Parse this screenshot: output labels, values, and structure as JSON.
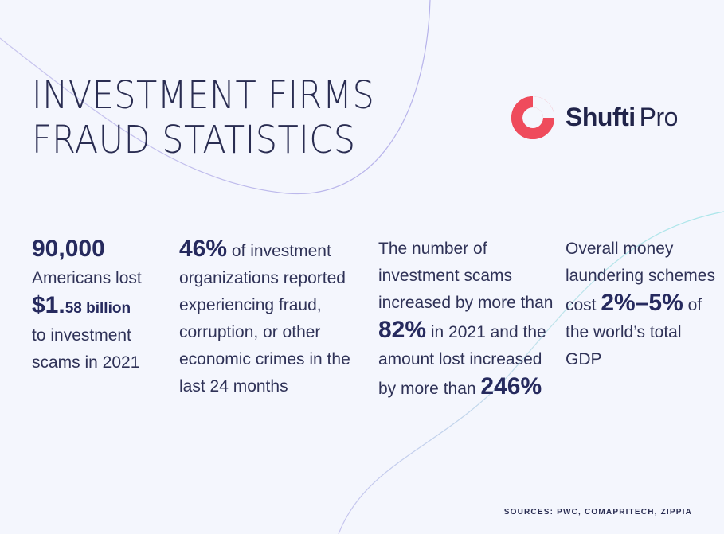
{
  "title": {
    "line1": "INVESTMENT FIRMS",
    "line2": "FRAUD STATISTICS"
  },
  "logo": {
    "bold": "Shufti",
    "light": "Pro",
    "icon": "shufti-pro-ring-logo",
    "color": "#ef4b5c"
  },
  "stats": {
    "col1": {
      "highlight": "90,000",
      "text1": "Americans lost",
      "amount_big": "$1.",
      "amount_small": "58 billion",
      "text2": "to investment scams in 2021"
    },
    "col2": {
      "highlight": "46%",
      "text": " of investment organizations reported experiencing fraud, corruption, or other economic crimes in the last 24 months"
    },
    "col3": {
      "text1": "The number of investment scams increased by more than ",
      "highlight1": "82%",
      "text2": " in 2021 and the amount lost increased by more than ",
      "highlight2": "246%"
    },
    "col4": {
      "text1": "Overall money laundering schemes cost ",
      "highlight": "2%–5%",
      "text2": " of the world’s total GDP"
    }
  },
  "sources": "SOURCES: PWC, COMAPRITECH, ZIPPIA"
}
